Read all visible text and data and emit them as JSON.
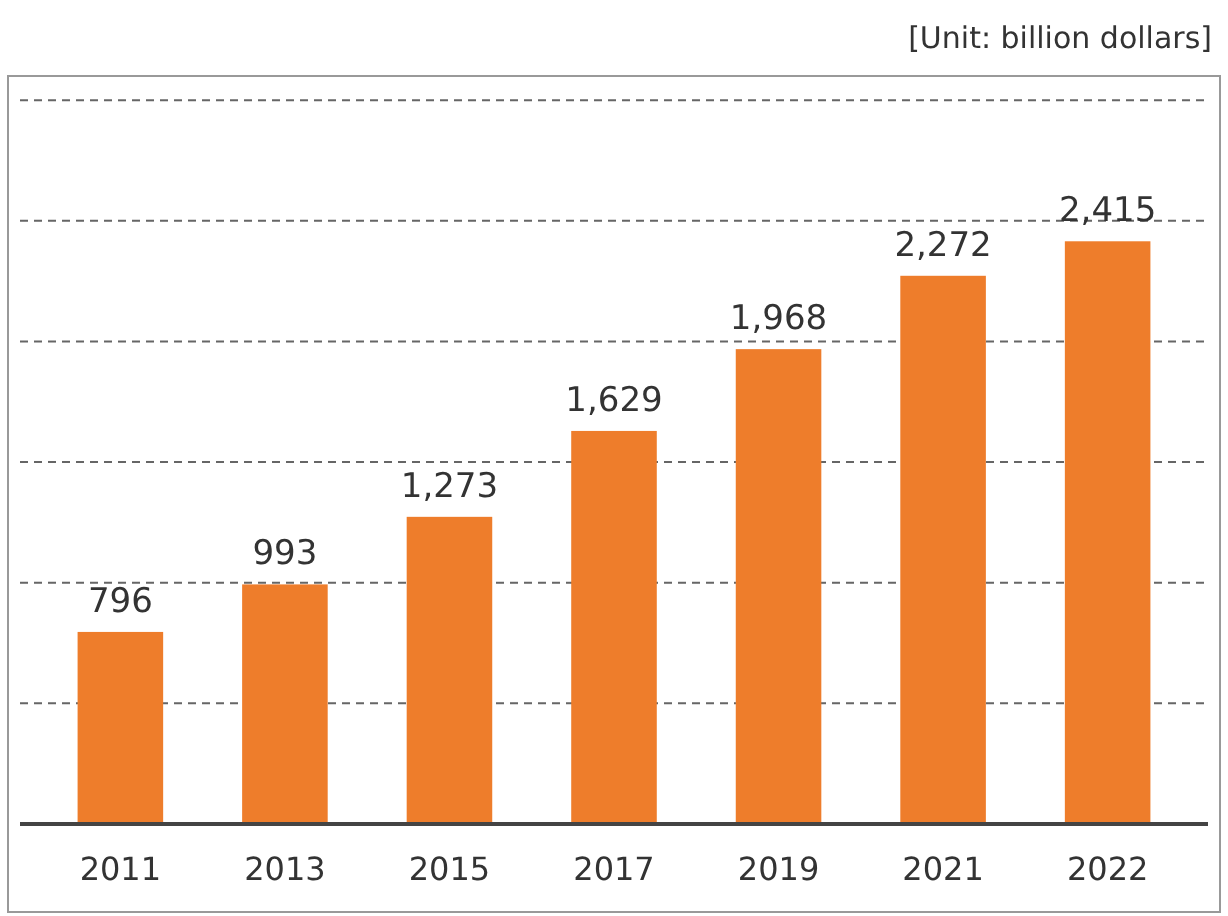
{
  "chart_data": {
    "type": "bar",
    "annotations": [
      "[Unit: billion dollars]"
    ],
    "categories": [
      "2011",
      "2013",
      "2015",
      "2017",
      "2019",
      "2021",
      "2022"
    ],
    "values": [
      796,
      993,
      1273,
      1629,
      1968,
      2272,
      2415
    ],
    "value_labels": [
      "796",
      "993",
      "1,273",
      "1,629",
      "1,968",
      "2,272",
      "2,415"
    ],
    "color": "#ee7d2b",
    "ylim": [
      0,
      3100
    ],
    "yticks": [
      {
        "value": 0,
        "label": null
      },
      {
        "value": 500,
        "label": null
      },
      {
        "value": 1000,
        "label": null
      },
      {
        "value": 1500,
        "label": null
      },
      {
        "value": 2000,
        "label": null
      },
      {
        "value": 2500,
        "label": null
      },
      {
        "value": 3000,
        "label": null
      }
    ],
    "grid": "y",
    "line_style": "dashed",
    "tick_labels": "x"
  }
}
